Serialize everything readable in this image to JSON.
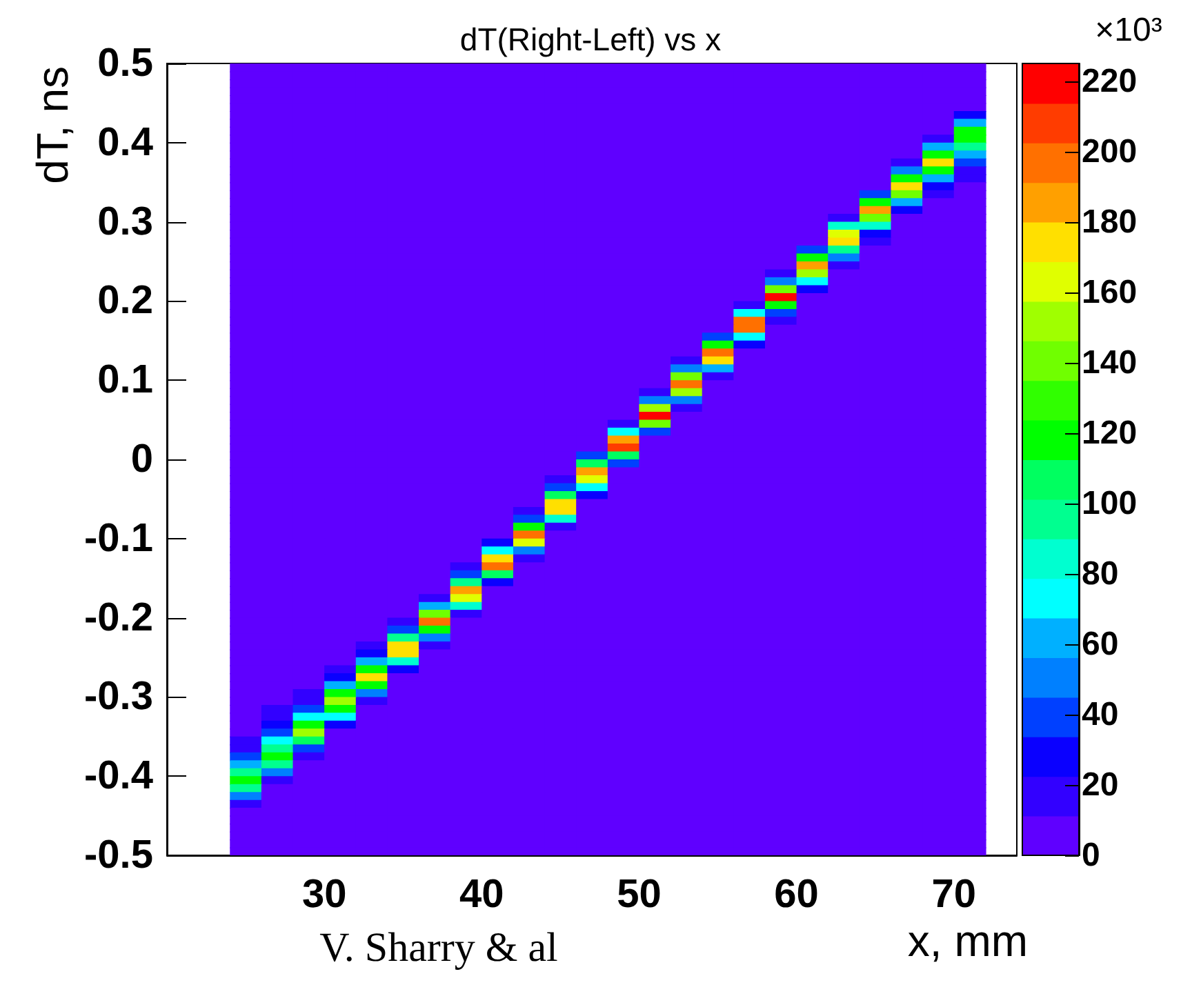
{
  "chart_data": {
    "type": "heatmap",
    "title": "dT(Right-Left) vs x",
    "xlabel": "x, mm",
    "ylabel": "dT, ns",
    "clabel": "×10³",
    "annotations": [
      "V. Sharry & al"
    ],
    "x": [
      25,
      27,
      29,
      31,
      33,
      35,
      37,
      39,
      41,
      43,
      45,
      47,
      49,
      51,
      53,
      55,
      57,
      59,
      61,
      63,
      65,
      67,
      69,
      71
    ],
    "cells": [
      [
        5,
        5,
        5,
        5,
        5,
        5,
        5,
        5,
        5,
        5,
        5,
        5,
        5,
        5,
        5,
        5,
        5,
        5,
        5,
        5,
        5,
        5,
        5,
        5
      ],
      [
        5,
        5,
        5,
        5,
        5,
        5,
        5,
        5,
        5,
        5,
        5,
        5,
        5,
        5,
        5,
        5,
        5,
        5,
        5,
        5,
        5,
        5,
        5,
        5
      ],
      [
        5,
        5,
        5,
        5,
        5,
        5,
        5,
        5,
        5,
        5,
        5,
        5,
        5,
        5,
        5,
        5,
        5,
        5,
        5,
        5,
        5,
        5,
        5,
        5
      ],
      [
        5,
        5,
        5,
        5,
        5,
        5,
        5,
        5,
        5,
        5,
        5,
        5,
        5,
        5,
        5,
        5,
        5,
        5,
        5,
        5,
        5,
        5,
        5,
        5
      ],
      [
        5,
        5,
        5,
        5,
        5,
        5,
        5,
        5,
        5,
        5,
        5,
        5,
        5,
        5,
        5,
        5,
        5,
        5,
        5,
        5,
        5,
        5,
        5,
        5
      ],
      [
        5,
        5,
        5,
        5,
        5,
        5,
        5,
        5,
        5,
        5,
        5,
        5,
        5,
        5,
        5,
        5,
        5,
        5,
        5,
        5,
        5,
        5,
        5,
        5
      ],
      [
        5,
        5,
        5,
        5,
        5,
        5,
        5,
        5,
        5,
        5,
        5,
        5,
        5,
        5,
        5,
        5,
        5,
        5,
        5,
        5,
        5,
        5,
        5,
        28
      ],
      [
        5,
        5,
        5,
        5,
        5,
        5,
        5,
        5,
        5,
        5,
        5,
        5,
        5,
        5,
        5,
        5,
        5,
        5,
        5,
        5,
        5,
        5,
        5,
        62
      ],
      [
        5,
        5,
        5,
        5,
        5,
        5,
        5,
        5,
        5,
        5,
        5,
        5,
        5,
        5,
        5,
        5,
        5,
        5,
        5,
        5,
        5,
        5,
        5,
        118
      ],
      [
        5,
        5,
        5,
        5,
        5,
        5,
        5,
        5,
        5,
        5,
        5,
        5,
        5,
        5,
        5,
        5,
        5,
        5,
        5,
        5,
        5,
        5,
        17,
        118
      ],
      [
        5,
        5,
        5,
        5,
        5,
        5,
        5,
        5,
        5,
        5,
        5,
        5,
        5,
        5,
        5,
        5,
        5,
        5,
        5,
        5,
        5,
        5,
        62,
        96
      ],
      [
        5,
        5,
        5,
        5,
        5,
        5,
        5,
        5,
        5,
        5,
        5,
        5,
        5,
        5,
        5,
        5,
        5,
        5,
        5,
        5,
        5,
        5,
        118,
        62
      ],
      [
        5,
        5,
        5,
        5,
        5,
        5,
        5,
        5,
        5,
        5,
        5,
        5,
        5,
        5,
        5,
        5,
        5,
        5,
        5,
        5,
        5,
        17,
        174,
        39
      ],
      [
        5,
        5,
        5,
        5,
        5,
        5,
        5,
        5,
        5,
        5,
        5,
        5,
        5,
        5,
        5,
        5,
        5,
        5,
        5,
        5,
        5,
        51,
        118,
        17
      ],
      [
        5,
        5,
        5,
        5,
        5,
        5,
        5,
        5,
        5,
        5,
        5,
        5,
        5,
        5,
        5,
        5,
        5,
        5,
        5,
        5,
        5,
        118,
        62,
        17
      ],
      [
        5,
        5,
        5,
        5,
        5,
        5,
        5,
        5,
        5,
        5,
        5,
        5,
        5,
        5,
        5,
        5,
        5,
        5,
        5,
        5,
        5,
        174,
        28,
        5
      ],
      [
        5,
        5,
        5,
        5,
        5,
        5,
        5,
        5,
        5,
        5,
        5,
        5,
        5,
        5,
        5,
        5,
        5,
        5,
        5,
        5,
        39,
        141,
        17,
        5
      ],
      [
        5,
        5,
        5,
        5,
        5,
        5,
        5,
        5,
        5,
        5,
        5,
        5,
        5,
        5,
        5,
        5,
        5,
        5,
        5,
        5,
        118,
        62,
        5,
        5
      ],
      [
        5,
        5,
        5,
        5,
        5,
        5,
        5,
        5,
        5,
        5,
        5,
        5,
        5,
        5,
        5,
        5,
        5,
        5,
        5,
        5,
        186,
        28,
        5,
        5
      ],
      [
        5,
        5,
        5,
        5,
        5,
        5,
        5,
        5,
        5,
        5,
        5,
        5,
        5,
        5,
        5,
        5,
        5,
        5,
        5,
        17,
        141,
        5,
        5,
        5
      ],
      [
        5,
        5,
        5,
        5,
        5,
        5,
        5,
        5,
        5,
        5,
        5,
        5,
        5,
        5,
        5,
        5,
        5,
        5,
        5,
        84,
        84,
        5,
        5,
        5
      ],
      [
        5,
        5,
        5,
        5,
        5,
        5,
        5,
        5,
        5,
        5,
        5,
        5,
        5,
        5,
        5,
        5,
        5,
        5,
        5,
        163,
        28,
        5,
        5,
        5
      ],
      [
        5,
        5,
        5,
        5,
        5,
        5,
        5,
        5,
        5,
        5,
        5,
        5,
        5,
        5,
        5,
        5,
        5,
        5,
        5,
        174,
        17,
        5,
        5,
        5
      ],
      [
        5,
        5,
        5,
        5,
        5,
        5,
        5,
        5,
        5,
        5,
        5,
        5,
        5,
        5,
        5,
        5,
        5,
        5,
        39,
        96,
        5,
        5,
        5,
        5
      ],
      [
        5,
        5,
        5,
        5,
        5,
        5,
        5,
        5,
        5,
        5,
        5,
        5,
        5,
        5,
        5,
        5,
        5,
        5,
        118,
        51,
        5,
        5,
        5,
        5
      ],
      [
        5,
        5,
        5,
        5,
        5,
        5,
        5,
        5,
        5,
        5,
        5,
        5,
        5,
        5,
        5,
        5,
        5,
        5,
        186,
        17,
        5,
        5,
        5,
        5
      ],
      [
        5,
        5,
        5,
        5,
        5,
        5,
        5,
        5,
        5,
        5,
        5,
        5,
        5,
        5,
        5,
        5,
        5,
        17,
        152,
        5,
        5,
        5,
        5,
        5
      ],
      [
        5,
        5,
        5,
        5,
        5,
        5,
        5,
        5,
        5,
        5,
        5,
        5,
        5,
        5,
        5,
        5,
        5,
        51,
        73,
        5,
        5,
        5,
        5,
        5
      ],
      [
        5,
        5,
        5,
        5,
        5,
        5,
        5,
        5,
        5,
        5,
        5,
        5,
        5,
        5,
        5,
        5,
        5,
        141,
        28,
        5,
        5,
        5,
        5,
        5
      ],
      [
        5,
        5,
        5,
        5,
        5,
        5,
        5,
        5,
        5,
        5,
        5,
        5,
        5,
        5,
        5,
        5,
        5,
        219,
        5,
        5,
        5,
        5,
        5,
        5
      ],
      [
        5,
        5,
        5,
        5,
        5,
        5,
        5,
        5,
        5,
        5,
        5,
        5,
        5,
        5,
        5,
        5,
        17,
        118,
        5,
        5,
        5,
        5,
        5,
        5
      ],
      [
        5,
        5,
        5,
        5,
        5,
        5,
        5,
        5,
        5,
        5,
        5,
        5,
        5,
        5,
        5,
        5,
        73,
        39,
        5,
        5,
        5,
        5,
        5,
        5
      ],
      [
        5,
        5,
        5,
        5,
        5,
        5,
        5,
        5,
        5,
        5,
        5,
        5,
        5,
        5,
        5,
        5,
        197,
        17,
        5,
        5,
        5,
        5,
        5,
        5
      ],
      [
        5,
        5,
        5,
        5,
        5,
        5,
        5,
        5,
        5,
        5,
        5,
        5,
        5,
        5,
        5,
        5,
        197,
        5,
        5,
        5,
        5,
        5,
        5,
        5
      ],
      [
        5,
        5,
        5,
        5,
        5,
        5,
        5,
        5,
        5,
        5,
        5,
        5,
        5,
        5,
        5,
        39,
        73,
        5,
        5,
        5,
        5,
        5,
        5,
        5
      ],
      [
        5,
        5,
        5,
        5,
        5,
        5,
        5,
        5,
        5,
        5,
        5,
        5,
        5,
        5,
        5,
        118,
        28,
        5,
        5,
        5,
        5,
        5,
        5,
        5
      ],
      [
        5,
        5,
        5,
        5,
        5,
        5,
        5,
        5,
        5,
        5,
        5,
        5,
        5,
        5,
        5,
        197,
        5,
        5,
        5,
        5,
        5,
        5,
        5,
        5
      ],
      [
        5,
        5,
        5,
        5,
        5,
        5,
        5,
        5,
        5,
        5,
        5,
        5,
        5,
        5,
        17,
        174,
        5,
        5,
        5,
        5,
        5,
        5,
        5,
        5
      ],
      [
        5,
        5,
        5,
        5,
        5,
        5,
        5,
        5,
        5,
        5,
        5,
        5,
        5,
        5,
        51,
        62,
        5,
        5,
        5,
        5,
        5,
        5,
        5,
        5
      ],
      [
        5,
        5,
        5,
        5,
        5,
        5,
        5,
        5,
        5,
        5,
        5,
        5,
        5,
        5,
        141,
        17,
        5,
        5,
        5,
        5,
        5,
        5,
        5,
        5
      ],
      [
        5,
        5,
        5,
        5,
        5,
        5,
        5,
        5,
        5,
        5,
        5,
        5,
        5,
        5,
        197,
        5,
        5,
        5,
        5,
        5,
        5,
        5,
        5,
        5
      ],
      [
        5,
        5,
        5,
        5,
        5,
        5,
        5,
        5,
        5,
        5,
        5,
        5,
        5,
        17,
        152,
        5,
        5,
        5,
        5,
        5,
        5,
        5,
        5,
        5
      ],
      [
        5,
        5,
        5,
        5,
        5,
        5,
        5,
        5,
        5,
        5,
        5,
        5,
        5,
        51,
        51,
        5,
        5,
        5,
        5,
        5,
        5,
        5,
        5,
        5
      ],
      [
        5,
        5,
        5,
        5,
        5,
        5,
        5,
        5,
        5,
        5,
        5,
        5,
        5,
        152,
        17,
        5,
        5,
        5,
        5,
        5,
        5,
        5,
        5,
        5
      ],
      [
        5,
        5,
        5,
        5,
        5,
        5,
        5,
        5,
        5,
        5,
        5,
        5,
        5,
        219,
        5,
        5,
        5,
        5,
        5,
        5,
        5,
        5,
        5,
        5
      ],
      [
        5,
        5,
        5,
        5,
        5,
        5,
        5,
        5,
        5,
        5,
        5,
        5,
        17,
        141,
        5,
        5,
        5,
        5,
        5,
        5,
        5,
        5,
        5,
        5
      ],
      [
        5,
        5,
        5,
        5,
        5,
        5,
        5,
        5,
        5,
        5,
        5,
        5,
        73,
        39,
        5,
        5,
        5,
        5,
        5,
        5,
        5,
        5,
        5,
        5
      ],
      [
        5,
        5,
        5,
        5,
        5,
        5,
        5,
        5,
        5,
        5,
        5,
        5,
        186,
        5,
        5,
        5,
        5,
        5,
        5,
        5,
        5,
        5,
        5,
        5
      ],
      [
        5,
        5,
        5,
        5,
        5,
        5,
        5,
        5,
        5,
        5,
        5,
        5,
        208,
        5,
        5,
        5,
        5,
        5,
        5,
        5,
        5,
        5,
        5,
        5
      ],
      [
        5,
        5,
        5,
        5,
        5,
        5,
        5,
        5,
        5,
        5,
        5,
        39,
        107,
        5,
        5,
        5,
        5,
        5,
        5,
        5,
        5,
        5,
        5,
        5
      ],
      [
        5,
        5,
        5,
        5,
        5,
        5,
        5,
        5,
        5,
        5,
        5,
        107,
        39,
        5,
        5,
        5,
        5,
        5,
        5,
        5,
        5,
        5,
        5,
        5
      ],
      [
        5,
        5,
        5,
        5,
        5,
        5,
        5,
        5,
        5,
        5,
        5,
        186,
        5,
        5,
        5,
        5,
        5,
        5,
        5,
        5,
        5,
        5,
        5,
        5
      ],
      [
        5,
        5,
        5,
        5,
        5,
        5,
        5,
        5,
        5,
        5,
        17,
        163,
        5,
        5,
        5,
        5,
        5,
        5,
        5,
        5,
        5,
        5,
        5,
        5
      ],
      [
        5,
        5,
        5,
        5,
        5,
        5,
        5,
        5,
        5,
        5,
        39,
        73,
        5,
        5,
        5,
        5,
        5,
        5,
        5,
        5,
        5,
        5,
        5,
        5
      ],
      [
        5,
        5,
        5,
        5,
        5,
        5,
        5,
        5,
        5,
        5,
        107,
        28,
        5,
        5,
        5,
        5,
        5,
        5,
        5,
        5,
        5,
        5,
        5,
        5
      ],
      [
        5,
        5,
        5,
        5,
        5,
        5,
        5,
        5,
        5,
        5,
        174,
        5,
        5,
        5,
        5,
        5,
        5,
        5,
        5,
        5,
        5,
        5,
        5,
        5
      ],
      [
        5,
        5,
        5,
        5,
        5,
        5,
        5,
        5,
        5,
        17,
        174,
        5,
        5,
        5,
        5,
        5,
        5,
        5,
        5,
        5,
        5,
        5,
        5,
        5
      ],
      [
        5,
        5,
        5,
        5,
        5,
        5,
        5,
        5,
        5,
        39,
        84,
        5,
        5,
        5,
        5,
        5,
        5,
        5,
        5,
        5,
        5,
        5,
        5,
        5
      ],
      [
        5,
        5,
        5,
        5,
        5,
        5,
        5,
        5,
        5,
        118,
        17,
        5,
        5,
        5,
        5,
        5,
        5,
        5,
        5,
        5,
        5,
        5,
        5,
        5
      ],
      [
        5,
        5,
        5,
        5,
        5,
        5,
        5,
        5,
        5,
        197,
        5,
        5,
        5,
        5,
        5,
        5,
        5,
        5,
        5,
        5,
        5,
        5,
        5,
        5
      ],
      [
        5,
        5,
        5,
        5,
        5,
        5,
        5,
        5,
        28,
        163,
        5,
        5,
        5,
        5,
        5,
        5,
        5,
        5,
        5,
        5,
        5,
        5,
        5,
        5
      ],
      [
        5,
        5,
        5,
        5,
        5,
        5,
        5,
        5,
        73,
        51,
        5,
        5,
        5,
        5,
        5,
        5,
        5,
        5,
        5,
        5,
        5,
        5,
        5,
        5
      ],
      [
        5,
        5,
        5,
        5,
        5,
        5,
        5,
        5,
        174,
        17,
        5,
        5,
        5,
        5,
        5,
        5,
        5,
        5,
        5,
        5,
        5,
        5,
        5,
        5
      ],
      [
        5,
        5,
        5,
        5,
        5,
        5,
        5,
        17,
        197,
        5,
        5,
        5,
        5,
        5,
        5,
        5,
        5,
        5,
        5,
        5,
        5,
        5,
        5,
        5
      ],
      [
        5,
        5,
        5,
        5,
        5,
        5,
        5,
        39,
        107,
        5,
        5,
        5,
        5,
        5,
        5,
        5,
        5,
        5,
        5,
        5,
        5,
        5,
        5,
        5
      ],
      [
        5,
        5,
        5,
        5,
        5,
        5,
        5,
        96,
        28,
        5,
        5,
        5,
        5,
        5,
        5,
        5,
        5,
        5,
        5,
        5,
        5,
        5,
        5,
        5
      ],
      [
        5,
        5,
        5,
        5,
        5,
        5,
        5,
        186,
        5,
        5,
        5,
        5,
        5,
        5,
        5,
        5,
        5,
        5,
        5,
        5,
        5,
        5,
        5,
        5
      ],
      [
        5,
        5,
        5,
        5,
        5,
        5,
        17,
        163,
        5,
        5,
        5,
        5,
        5,
        5,
        5,
        5,
        5,
        5,
        5,
        5,
        5,
        5,
        5,
        5
      ],
      [
        5,
        5,
        5,
        5,
        5,
        5,
        62,
        84,
        5,
        5,
        5,
        5,
        5,
        5,
        5,
        5,
        5,
        5,
        5,
        5,
        5,
        5,
        5,
        5
      ],
      [
        5,
        5,
        5,
        5,
        5,
        5,
        141,
        17,
        5,
        5,
        5,
        5,
        5,
        5,
        5,
        5,
        5,
        5,
        5,
        5,
        5,
        5,
        5,
        5
      ],
      [
        5,
        5,
        5,
        5,
        5,
        17,
        197,
        5,
        5,
        5,
        5,
        5,
        5,
        5,
        5,
        5,
        5,
        5,
        5,
        5,
        5,
        5,
        5,
        5
      ],
      [
        5,
        5,
        5,
        5,
        5,
        39,
        118,
        5,
        5,
        5,
        5,
        5,
        5,
        5,
        5,
        5,
        5,
        5,
        5,
        5,
        5,
        5,
        5,
        5
      ],
      [
        5,
        5,
        5,
        5,
        5,
        96,
        51,
        5,
        5,
        5,
        5,
        5,
        5,
        5,
        5,
        5,
        5,
        5,
        5,
        5,
        5,
        5,
        5,
        5
      ],
      [
        5,
        5,
        5,
        5,
        17,
        174,
        17,
        5,
        5,
        5,
        5,
        5,
        5,
        5,
        5,
        5,
        5,
        5,
        5,
        5,
        5,
        5,
        5,
        5
      ],
      [
        5,
        5,
        5,
        5,
        28,
        174,
        5,
        5,
        5,
        5,
        5,
        5,
        5,
        5,
        5,
        5,
        5,
        5,
        5,
        5,
        5,
        5,
        5,
        5
      ],
      [
        5,
        5,
        5,
        5,
        62,
        84,
        5,
        5,
        5,
        5,
        5,
        5,
        5,
        5,
        5,
        5,
        5,
        5,
        5,
        5,
        5,
        5,
        5,
        5
      ],
      [
        5,
        5,
        5,
        17,
        118,
        28,
        5,
        5,
        5,
        5,
        5,
        5,
        5,
        5,
        5,
        5,
        5,
        5,
        5,
        5,
        5,
        5,
        5,
        5
      ],
      [
        5,
        5,
        5,
        28,
        174,
        5,
        5,
        5,
        5,
        5,
        5,
        5,
        5,
        5,
        5,
        5,
        5,
        5,
        5,
        5,
        5,
        5,
        5,
        5
      ],
      [
        5,
        5,
        5,
        62,
        118,
        5,
        5,
        5,
        5,
        5,
        5,
        5,
        5,
        5,
        5,
        5,
        5,
        5,
        5,
        5,
        5,
        5,
        5,
        5
      ],
      [
        5,
        5,
        17,
        118,
        51,
        5,
        5,
        5,
        5,
        5,
        5,
        5,
        5,
        5,
        5,
        5,
        5,
        5,
        5,
        5,
        5,
        5,
        5,
        5
      ],
      [
        5,
        5,
        17,
        152,
        17,
        5,
        5,
        5,
        5,
        5,
        5,
        5,
        5,
        5,
        5,
        5,
        5,
        5,
        5,
        5,
        5,
        5,
        5,
        5
      ],
      [
        5,
        17,
        39,
        118,
        5,
        5,
        5,
        5,
        5,
        5,
        5,
        5,
        5,
        5,
        5,
        5,
        5,
        5,
        5,
        5,
        5,
        5,
        5,
        5
      ],
      [
        5,
        17,
        73,
        73,
        5,
        5,
        5,
        5,
        5,
        5,
        5,
        5,
        5,
        5,
        5,
        5,
        5,
        5,
        5,
        5,
        5,
        5,
        5,
        5
      ],
      [
        5,
        28,
        118,
        28,
        5,
        5,
        5,
        5,
        5,
        5,
        5,
        5,
        5,
        5,
        5,
        5,
        5,
        5,
        5,
        5,
        5,
        5,
        5,
        5
      ],
      [
        5,
        39,
        152,
        5,
        5,
        5,
        5,
        5,
        5,
        5,
        5,
        5,
        5,
        5,
        5,
        5,
        5,
        5,
        5,
        5,
        5,
        5,
        5,
        5
      ],
      [
        17,
        73,
        107,
        5,
        5,
        5,
        5,
        5,
        5,
        5,
        5,
        5,
        5,
        5,
        5,
        5,
        5,
        5,
        5,
        5,
        5,
        5,
        5,
        5
      ],
      [
        17,
        96,
        39,
        5,
        5,
        5,
        5,
        5,
        5,
        5,
        5,
        5,
        5,
        5,
        5,
        5,
        5,
        5,
        5,
        5,
        5,
        5,
        5,
        5
      ],
      [
        39,
        118,
        17,
        5,
        5,
        5,
        5,
        5,
        5,
        5,
        5,
        5,
        5,
        5,
        5,
        5,
        5,
        5,
        5,
        5,
        5,
        5,
        5,
        5
      ],
      [
        62,
        96,
        5,
        5,
        5,
        5,
        5,
        5,
        5,
        5,
        5,
        5,
        5,
        5,
        5,
        5,
        5,
        5,
        5,
        5,
        5,
        5,
        5,
        5
      ],
      [
        96,
        51,
        5,
        5,
        5,
        5,
        5,
        5,
        5,
        5,
        5,
        5,
        5,
        5,
        5,
        5,
        5,
        5,
        5,
        5,
        5,
        5,
        5,
        5
      ],
      [
        118,
        17,
        5,
        5,
        5,
        5,
        5,
        5,
        5,
        5,
        5,
        5,
        5,
        5,
        5,
        5,
        5,
        5,
        5,
        5,
        5,
        5,
        5,
        5
      ],
      [
        96,
        5,
        5,
        5,
        5,
        5,
        5,
        5,
        5,
        5,
        5,
        5,
        5,
        5,
        5,
        5,
        5,
        5,
        5,
        5,
        5,
        5,
        5,
        5
      ],
      [
        51,
        5,
        5,
        5,
        5,
        5,
        5,
        5,
        5,
        5,
        5,
        5,
        5,
        5,
        5,
        5,
        5,
        5,
        5,
        5,
        5,
        5,
        5,
        5
      ],
      [
        17,
        5,
        5,
        5,
        5,
        5,
        5,
        5,
        5,
        5,
        5,
        5,
        5,
        5,
        5,
        5,
        5,
        5,
        5,
        5,
        5,
        5,
        5,
        5
      ],
      [
        5,
        5,
        5,
        5,
        5,
        5,
        5,
        5,
        5,
        5,
        5,
        5,
        5,
        5,
        5,
        5,
        5,
        5,
        5,
        5,
        5,
        5,
        5,
        5
      ],
      [
        5,
        5,
        5,
        5,
        5,
        5,
        5,
        5,
        5,
        5,
        5,
        5,
        5,
        5,
        5,
        5,
        5,
        5,
        5,
        5,
        5,
        5,
        5,
        5
      ],
      [
        5,
        5,
        5,
        5,
        5,
        5,
        5,
        5,
        5,
        5,
        5,
        5,
        5,
        5,
        5,
        5,
        5,
        5,
        5,
        5,
        5,
        5,
        5,
        5
      ],
      [
        5,
        5,
        5,
        5,
        5,
        5,
        5,
        5,
        5,
        5,
        5,
        5,
        5,
        5,
        5,
        5,
        5,
        5,
        5,
        5,
        5,
        5,
        5,
        5
      ],
      [
        5,
        5,
        5,
        5,
        5,
        5,
        5,
        5,
        5,
        5,
        5,
        5,
        5,
        5,
        5,
        5,
        5,
        5,
        5,
        5,
        5,
        5,
        5,
        5
      ],
      [
        5,
        5,
        5,
        5,
        5,
        5,
        5,
        5,
        5,
        5,
        5,
        5,
        5,
        5,
        5,
        5,
        5,
        5,
        5,
        5,
        5,
        5,
        5,
        5
      ]
    ],
    "xlim": [
      20,
      74
    ],
    "xticks": [
      30,
      40,
      50,
      60,
      70
    ],
    "ylim": [
      -0.5,
      0.5
    ],
    "yticks": [
      -0.5,
      -0.4,
      -0.3,
      -0.2,
      -0.1,
      0,
      0.1,
      0.2,
      0.3,
      0.4,
      0.5
    ],
    "clim": [
      0,
      225
    ],
    "cticks": [
      0,
      20,
      40,
      60,
      80,
      100,
      120,
      140,
      160,
      180,
      200,
      220
    ]
  }
}
